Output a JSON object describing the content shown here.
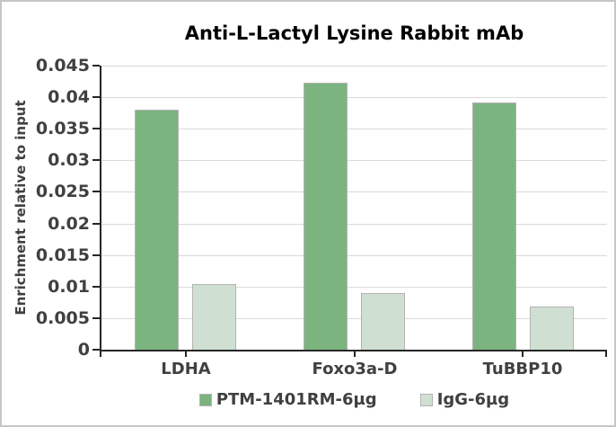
{
  "colors": {
    "series1": "#7cb47f",
    "series2": "#cfe0d2",
    "bar_border": "#b3b3b3",
    "gridline": "#d9d9d9",
    "axis": "#262626",
    "label_text": "#404040",
    "title_text": "#000000",
    "frame_border": "#c6c6c6",
    "background": "#ffffff"
  },
  "chart_data": {
    "type": "bar",
    "title": "Anti-L-Lactyl Lysine Rabbit mAb",
    "ylabel": "Enrichment relative to input",
    "xlabel": "",
    "categories": [
      "LDHA",
      "Foxo3a-D",
      "TuBBP10"
    ],
    "series": [
      {
        "name": "PTM-1401RM-6µg",
        "color": "#7cb47f",
        "values": [
          0.038,
          0.0423,
          0.0392
        ]
      },
      {
        "name": "IgG-6µg",
        "color": "#cfe0d2",
        "values": [
          0.0104,
          0.009,
          0.0068
        ]
      }
    ],
    "ylim": [
      0,
      0.045
    ],
    "ytick_step": 0.005,
    "yticks": [
      "0",
      "0.005",
      "0.01",
      "0.015",
      "0.02",
      "0.025",
      "0.03",
      "0.035",
      "0.04",
      "0.045"
    ],
    "grid": true,
    "legend_position": "bottom"
  }
}
